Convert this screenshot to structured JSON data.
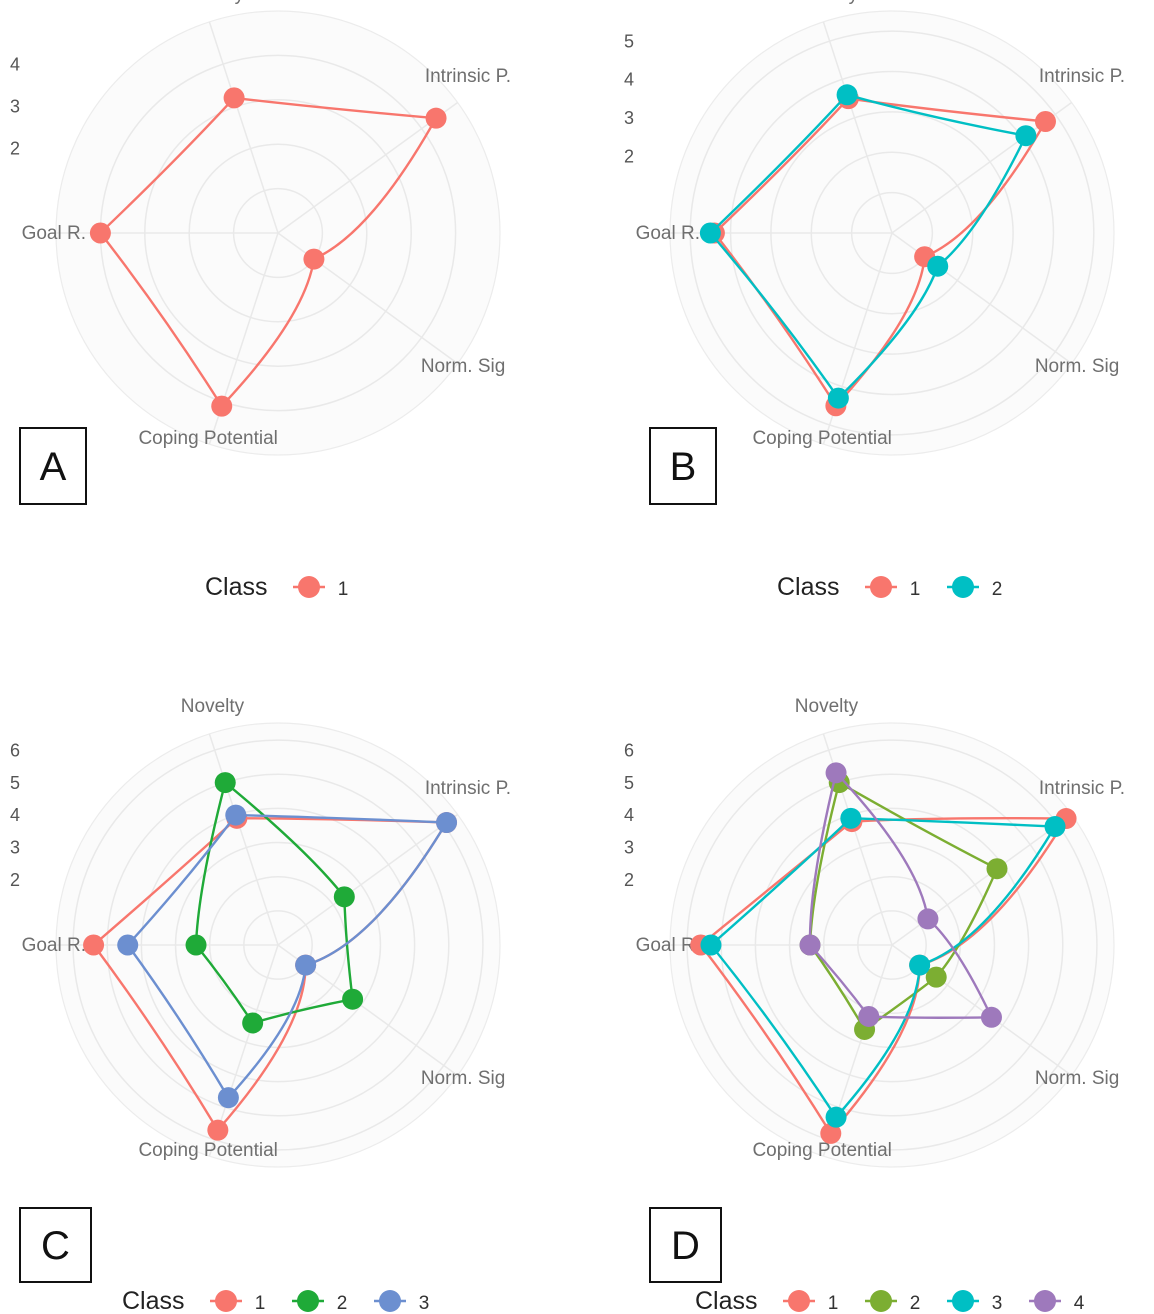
{
  "figure": {
    "panels": [
      "A",
      "B",
      "C",
      "D"
    ],
    "legend_title": "Class"
  },
  "chart_data": [
    {
      "type": "radar",
      "panel": "A",
      "categories": [
        "Intrinsic P.",
        "Norm. Sig",
        "Coping Potential",
        "Goal R.",
        "Novelty"
      ],
      "rticks": [
        2,
        3,
        4
      ],
      "rmax": 5,
      "legend_title": "Class",
      "series": [
        {
          "name": "1",
          "color": "#F8766D",
          "values": [
            4.4,
            1.0,
            4.1,
            4.0,
            3.2
          ]
        }
      ]
    },
    {
      "type": "radar",
      "panel": "B",
      "categories": [
        "Intrinsic P.",
        "Norm. Sig",
        "Coping Potential",
        "Goal R.",
        "Novelty"
      ],
      "rticks": [
        2,
        3,
        4,
        5
      ],
      "rmax": 5.5,
      "legend_title": "Class",
      "series": [
        {
          "name": "1",
          "color": "#F8766D",
          "values": [
            4.7,
            1.0,
            4.5,
            4.4,
            3.5
          ]
        },
        {
          "name": "2",
          "color": "#00BFC4",
          "values": [
            4.1,
            1.4,
            4.3,
            4.5,
            3.6
          ]
        }
      ]
    },
    {
      "type": "radar",
      "panel": "C",
      "categories": [
        "Intrinsic P.",
        "Norm. Sig",
        "Coping Potential",
        "Goal R.",
        "Novelty"
      ],
      "rticks": [
        2,
        3,
        4,
        5,
        6
      ],
      "rmax": 6.5,
      "legend_title": "Class",
      "series": [
        {
          "name": "1",
          "color": "#F8766D",
          "values": [
            6.1,
            1.0,
            5.7,
            5.4,
            3.9
          ]
        },
        {
          "name": "2",
          "color": "#1FAA38",
          "values": [
            2.4,
            2.7,
            2.4,
            2.4,
            5.0
          ]
        },
        {
          "name": "3",
          "color": "#6C8FD0",
          "values": [
            6.1,
            1.0,
            4.7,
            4.4,
            4.0
          ]
        }
      ]
    },
    {
      "type": "radar",
      "panel": "D",
      "categories": [
        "Intrinsic P.",
        "Norm. Sig",
        "Coping Potential",
        "Goal R.",
        "Novelty"
      ],
      "rticks": [
        2,
        3,
        4,
        5,
        6
      ],
      "rmax": 6.5,
      "legend_title": "Class",
      "series": [
        {
          "name": "1",
          "color": "#F8766D",
          "values": [
            6.3,
            1.0,
            5.8,
            5.6,
            3.8
          ]
        },
        {
          "name": "2",
          "color": "#7CAE32",
          "values": [
            3.8,
            1.6,
            2.6,
            2.4,
            5.0
          ]
        },
        {
          "name": "3",
          "color": "#00BFC4",
          "values": [
            5.9,
            1.0,
            5.3,
            5.3,
            3.9
          ]
        },
        {
          "name": "4",
          "color": "#9E79BC",
          "values": [
            1.3,
            3.6,
            2.2,
            2.4,
            5.3
          ]
        }
      ]
    }
  ]
}
